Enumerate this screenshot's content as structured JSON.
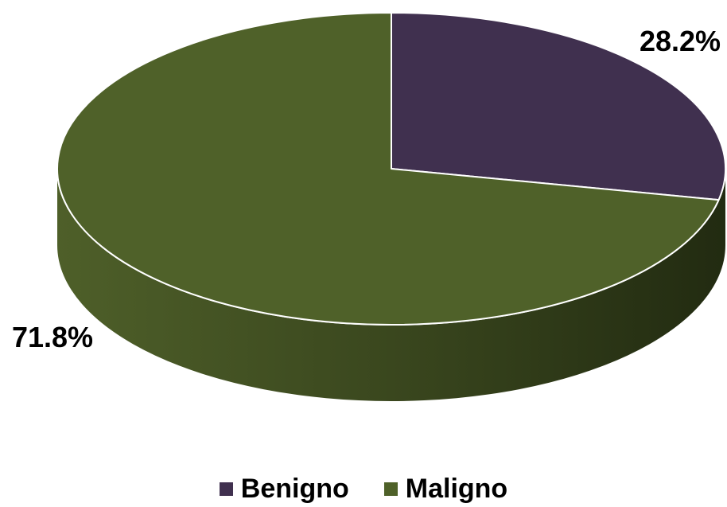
{
  "chart_data": {
    "type": "pie",
    "title": "",
    "style": "3d",
    "slices": [
      {
        "name": "Benigno",
        "value": 28.2,
        "label": "28.2%",
        "color": "#40304f"
      },
      {
        "name": "Maligno",
        "value": 71.8,
        "label": "71.8%",
        "color": "#4f6129"
      }
    ],
    "legend_position": "bottom"
  }
}
